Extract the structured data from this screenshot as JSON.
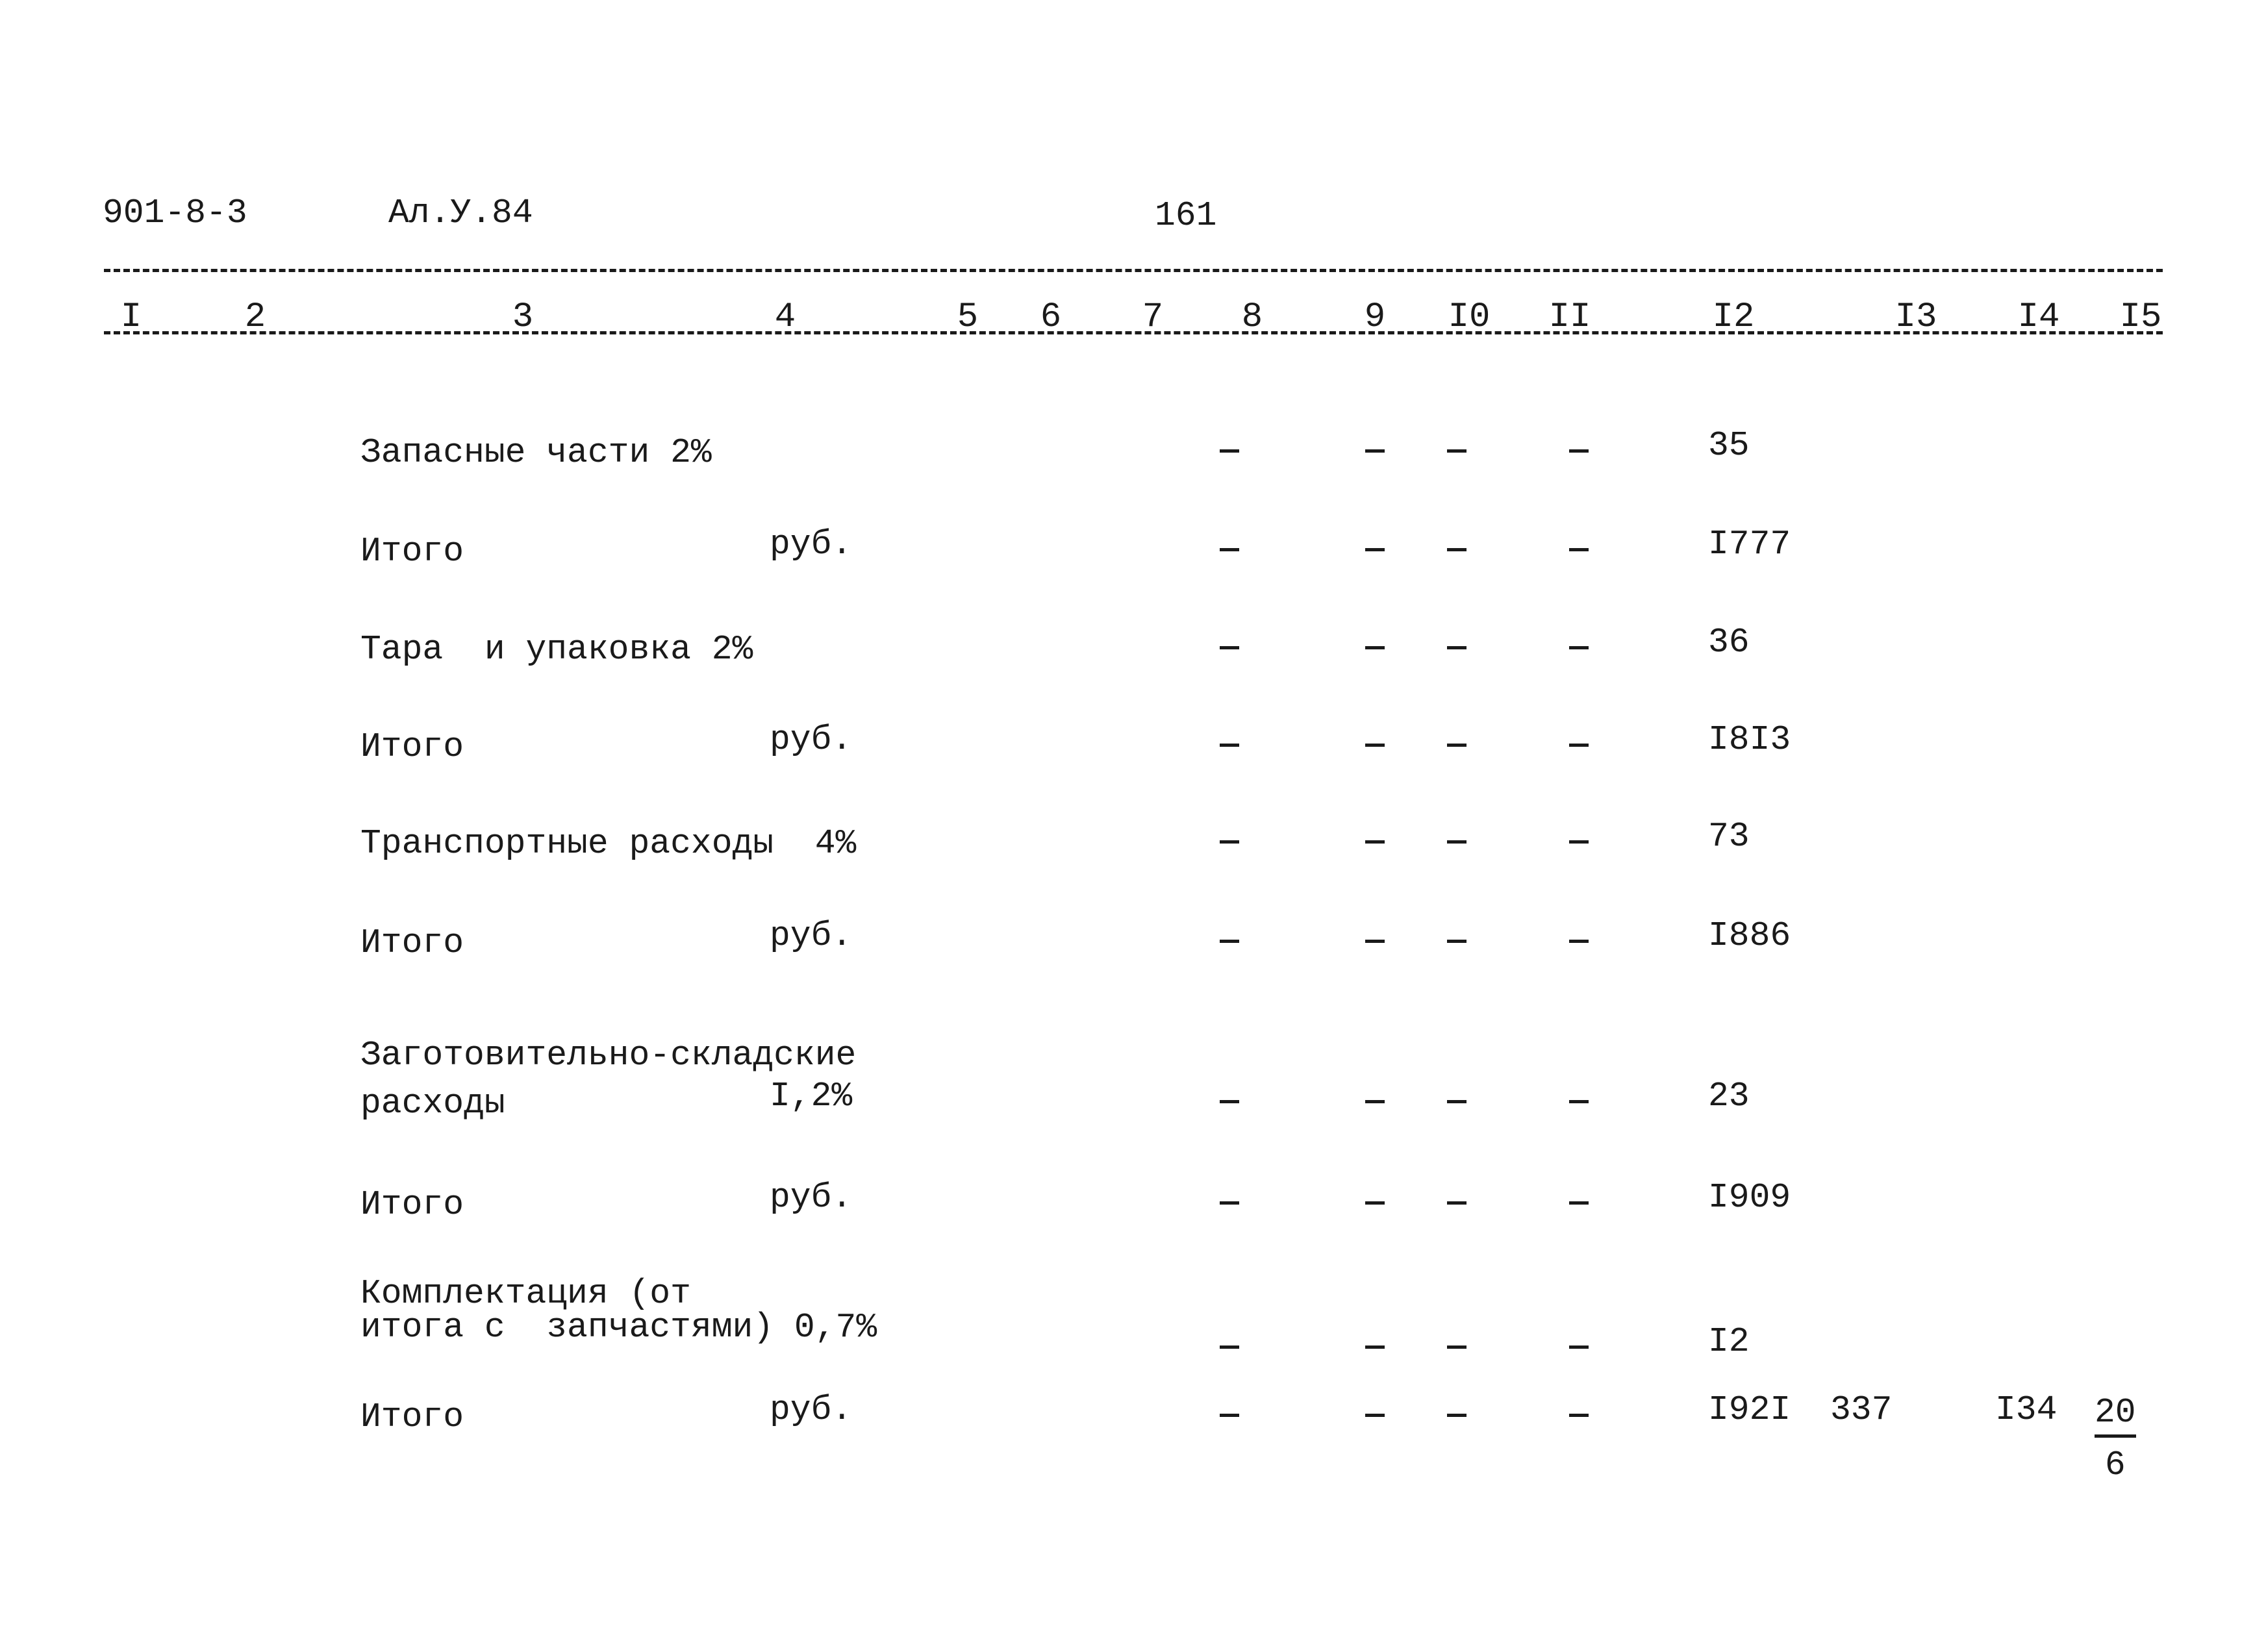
{
  "header": {
    "doc_code": "901-8-3",
    "album": "Ал.У.84",
    "page_number": "161"
  },
  "columns": [
    "I",
    "2",
    "3",
    "4",
    "5",
    "6",
    "7",
    "8",
    "9",
    "I0",
    "II",
    "I2",
    "I3",
    "I4",
    "I5"
  ],
  "rows": [
    {
      "label": "Запасные части 2%",
      "unit": "",
      "dashes": [
        "-",
        "-",
        "-",
        "-"
      ],
      "value": "35"
    },
    {
      "label": "Итого",
      "unit": "руб.",
      "dashes": [
        "-",
        "-",
        "-",
        "-"
      ],
      "value": "I777"
    },
    {
      "label": "Тара  и упаковка 2%",
      "unit": "",
      "dashes": [
        "-",
        "-",
        "-",
        "-"
      ],
      "value": "36"
    },
    {
      "label": "Итого",
      "unit": "руб.",
      "dashes": [
        "-",
        "-",
        "-",
        "-"
      ],
      "value": "I8I3"
    },
    {
      "label": "Транспортные расходы  4%",
      "unit": "",
      "dashes": [
        "-",
        "-",
        "-",
        "-"
      ],
      "value": "73"
    },
    {
      "label": "Итого",
      "unit": "руб.",
      "dashes": [
        "-",
        "-",
        "-",
        "-"
      ],
      "value": "I886"
    },
    {
      "label": "Заготовительно-складские\nрасходы",
      "unit": "I,2%",
      "dashes": [
        "-",
        "-",
        "-",
        "-"
      ],
      "value": "23"
    },
    {
      "label": "Итого",
      "unit": "руб.",
      "dashes": [
        "-",
        "-",
        "-",
        "-"
      ],
      "value": "I909"
    },
    {
      "label": "Комплектация (от\nитога с  запчастями) 0,7%",
      "unit": "",
      "dashes": [
        "-",
        "-",
        "-",
        "-"
      ],
      "value": "I2"
    },
    {
      "label": "Итого",
      "unit": "руб.",
      "dashes": [
        "-",
        "-",
        "-",
        "-"
      ],
      "value": "I92I",
      "col13": "337",
      "col14": "I34",
      "col15_numerator": "20",
      "col15_denominator": "6"
    }
  ]
}
